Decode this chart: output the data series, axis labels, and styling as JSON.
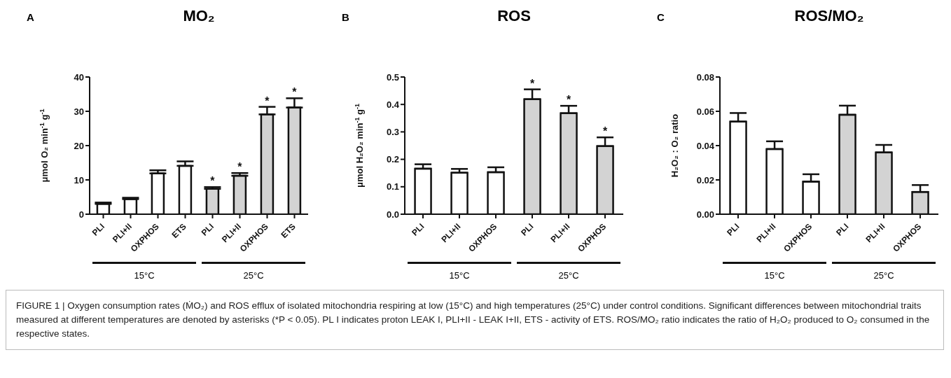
{
  "chart_data": [
    {
      "type": "bar",
      "title": "MO₂",
      "ylabel": "μmol O₂ min$^{-1}$ g$^{-1}$",
      "categories": [
        "PLI",
        "PLI+II",
        "OXPHOS",
        "ETS",
        "PLI",
        "PLI+II",
        "OXPHOS",
        "ETS"
      ],
      "values": [
        3.0,
        4.4,
        11.9,
        14.1,
        7.4,
        11.2,
        29.1,
        31.1
      ],
      "errors": [
        0.4,
        0.4,
        0.9,
        1.3,
        0.5,
        0.8,
        2.2,
        2.7
      ],
      "value_labels": [
        null,
        null,
        null,
        null,
        "*",
        "*",
        "*",
        "*"
      ],
      "colors": [
        "#ffffff",
        "#ffffff",
        "#ffffff",
        "#ffffff",
        "#d3d3d3",
        "#d3d3d3",
        "#d3d3d3",
        "#d3d3d3"
      ],
      "ylim": [
        0,
        40
      ],
      "yticks": [
        0,
        10,
        20,
        30,
        40
      ],
      "annotations": [
        "A",
        "15°C",
        "25°C"
      ]
    },
    {
      "type": "bar",
      "title": "ROS",
      "ylabel": "μmol H₂O₂ min$^{-1}$ g$^{-1}$",
      "categories": [
        "PLI",
        "PLI+II",
        "OXPHOS",
        "PLI",
        "PLI+II",
        "OXPHOS"
      ],
      "values": [
        0.166,
        0.151,
        0.153,
        0.419,
        0.368,
        0.248
      ],
      "errors": [
        0.016,
        0.014,
        0.018,
        0.036,
        0.027,
        0.032
      ],
      "value_labels": [
        null,
        null,
        null,
        "*",
        "*",
        "*"
      ],
      "colors": [
        "#ffffff",
        "#ffffff",
        "#ffffff",
        "#d3d3d3",
        "#d3d3d3",
        "#d3d3d3"
      ],
      "ylim": [
        0,
        0.5
      ],
      "yticks": [
        {
          "value": 0,
          "label": "0.0"
        },
        0.1,
        0.2,
        0.3,
        0.4,
        0.5
      ],
      "annotations": [
        "B",
        "15°C",
        "25°C"
      ]
    },
    {
      "type": "bar",
      "title": "ROS/MO₂",
      "ylabel": "H₂O₂ : O₂ ratio",
      "categories": [
        "PLI",
        "PLI+II",
        "OXPHOS",
        "PLI",
        "PLI+II",
        "OXPHOS"
      ],
      "values": [
        0.054,
        0.038,
        0.019,
        0.058,
        0.036,
        0.013
      ],
      "errors": [
        0.005,
        0.0045,
        0.0043,
        0.0053,
        0.0044,
        0.004
      ],
      "colors": [
        "#ffffff",
        "#ffffff",
        "#ffffff",
        "#d3d3d3",
        "#d3d3d3",
        "#d3d3d3"
      ],
      "ylim": [
        0,
        0.08
      ],
      "yticks": [
        {
          "value": 0,
          "label": "0.00"
        },
        {
          "value": 0.02,
          "label": "0.02"
        },
        {
          "value": 0.04,
          "label": "0.04"
        },
        {
          "value": 0.06,
          "label": "0.06"
        },
        {
          "value": 0.08,
          "label": "0.08"
        }
      ],
      "annotations": [
        "C",
        "15°C",
        "25°C"
      ]
    },
    {
      "type": "other",
      "annotations": [
        "FIGURE 1 | Oxygen consumption rates (ṀO₂) and ROS efflux of isolated mitochondria respiring at low (15°C) and high temperatures (25°C) under control conditions. Significant differences between mitochondrial traits measured at different temperatures are denoted by asterisks (*P < 0.05). PL I indicates proton LEAK I, PLI+II - LEAK I+II, ETS - activity of ETS. ROS/MO₂ ratio indicates the ratio of H₂O₂ produced to O₂ consumed in the respective states."
      ]
    }
  ]
}
